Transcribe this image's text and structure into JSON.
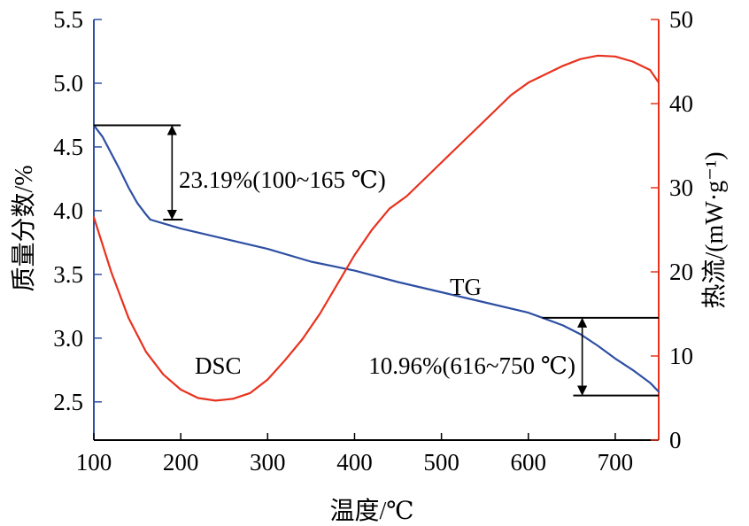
{
  "chart_data": {
    "type": "line",
    "xlabel": "温度/℃",
    "ylabel_left": "质量分数/%",
    "ylabel_right": "热流/(mW·g⁻¹)",
    "xlim": [
      100,
      750
    ],
    "ylim_left": [
      2.2,
      5.5
    ],
    "ylim_right": [
      0,
      50
    ],
    "x_ticks": [
      100,
      200,
      300,
      400,
      500,
      600,
      700
    ],
    "y_left_ticks": [
      "2.5",
      "3.0",
      "3.5",
      "4.0",
      "4.5",
      "5.0",
      "5.5"
    ],
    "y_right_ticks": [
      "0",
      "10",
      "20",
      "30",
      "40",
      "50"
    ],
    "grid": false,
    "colors": {
      "TG": "#2e4fa3",
      "DSC": "#e8321e",
      "left_axis": "#2e4fa3",
      "right_axis": "#e8321e"
    },
    "series": [
      {
        "name": "TG",
        "axis": "left",
        "x": [
          100,
          110,
          120,
          130,
          140,
          150,
          160,
          165,
          180,
          200,
          250,
          300,
          350,
          400,
          450,
          500,
          550,
          600,
          616,
          640,
          660,
          680,
          700,
          720,
          740,
          750
        ],
        "y": [
          4.67,
          4.58,
          4.45,
          4.32,
          4.18,
          4.06,
          3.97,
          3.93,
          3.9,
          3.86,
          3.78,
          3.7,
          3.6,
          3.53,
          3.44,
          3.36,
          3.28,
          3.2,
          3.16,
          3.1,
          3.03,
          2.94,
          2.84,
          2.75,
          2.65,
          2.58
        ]
      },
      {
        "name": "DSC",
        "axis": "right",
        "x": [
          100,
          120,
          140,
          160,
          180,
          200,
          220,
          240,
          260,
          280,
          300,
          320,
          340,
          360,
          380,
          400,
          420,
          440,
          460,
          480,
          500,
          520,
          540,
          560,
          580,
          600,
          620,
          640,
          660,
          680,
          700,
          720,
          740,
          750
        ],
        "y": [
          26.5,
          20,
          14.5,
          10.5,
          7.8,
          6,
          5,
          4.7,
          4.9,
          5.6,
          7.2,
          9.5,
          12,
          15,
          18.5,
          22,
          25,
          27.5,
          29,
          31,
          33,
          35,
          37,
          39,
          41,
          42.5,
          43.5,
          44.5,
          45.3,
          45.7,
          45.6,
          45,
          44,
          42.5
        ]
      }
    ],
    "labels": {
      "tg": "TG",
      "dsc": "DSC"
    },
    "annotations": [
      {
        "text": "23.19%(100~165 ℃)",
        "x_start": 100,
        "x_end": 200,
        "y_top": 4.67,
        "y_bottom": 3.93,
        "arrow_x": 190
      },
      {
        "text": "10.96%(616~750 ℃)",
        "x_start": 616,
        "x_end": 750,
        "y_top": 3.16,
        "y_bottom": 2.55,
        "arrow_x": 662
      }
    ]
  }
}
